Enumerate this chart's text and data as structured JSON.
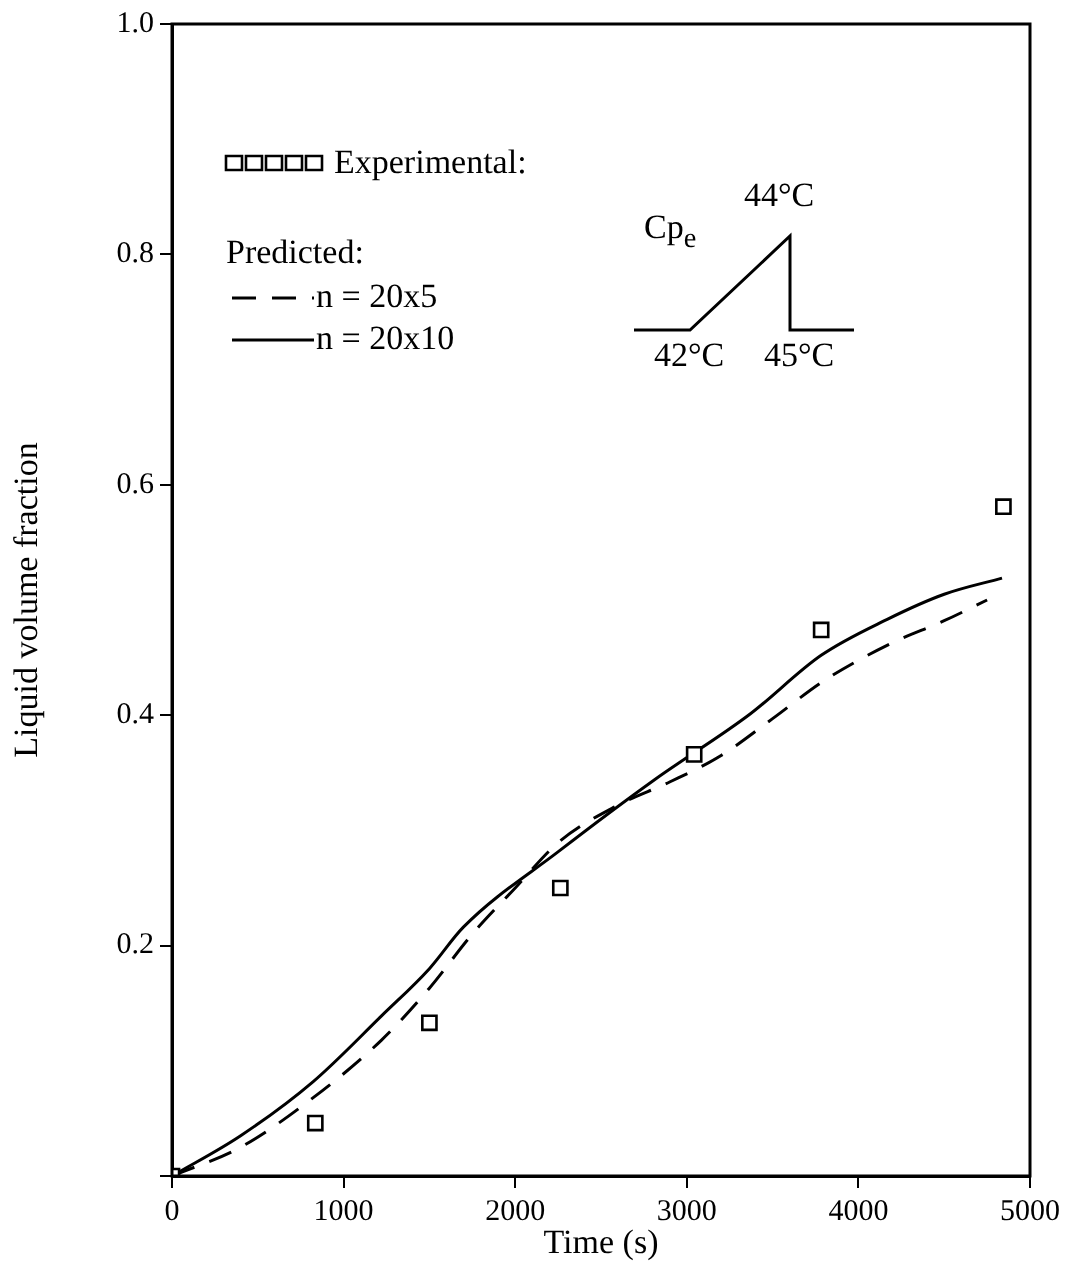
{
  "chart_data": {
    "type": "line",
    "xlabel": "Time (s)",
    "ylabel": "Liquid volume fraction",
    "legend_title": "Predicted:",
    "legend": "top left",
    "grid": false,
    "xlim": [
      0,
      5000
    ],
    "xticks": [
      0,
      1000,
      2000,
      3000,
      4000,
      5000
    ],
    "ylim": [
      0,
      1.0
    ],
    "yticks": [
      {
        "value": 0,
        "label": null
      },
      0.2,
      0.4,
      0.6,
      0.8,
      {
        "value": 1.0,
        "label": "1.0"
      }
    ],
    "annotations": [
      "Cp$_{e}$",
      "44°C",
      "42°C",
      "45°C"
    ],
    "series": [
      {
        "name": "Experimental:",
        "type": "scatter",
        "marker": "square",
        "color": "#000000",
        "x": [
          0,
          835,
          1500,
          2263,
          3043,
          3783,
          4845
        ],
        "values": [
          0,
          0.046,
          0.133,
          0.25,
          0.366,
          0.474,
          0.581
        ]
      },
      {
        "name": "n = 20x5",
        "type": "line",
        "line_style": "dashed",
        "marker": "none",
        "color": "#000000",
        "x": [
          0,
          400,
          823,
          1221,
          1500,
          1750,
          2000,
          2255,
          2600,
          2900,
          3200,
          3500,
          3800,
          4200,
          4500,
          4750
        ],
        "values": [
          0,
          0.025,
          0.068,
          0.118,
          0.163,
          0.21,
          0.25,
          0.29,
          0.322,
          0.342,
          0.365,
          0.397,
          0.43,
          0.463,
          0.482,
          0.5
        ]
      },
      {
        "name": "n = 20x10",
        "type": "line",
        "line_style": "solid",
        "marker": "none",
        "color": "#000000",
        "x": [
          0,
          400,
          823,
          1221,
          1500,
          1698,
          2255,
          2812,
          3369,
          3783,
          4165,
          4500,
          4837
        ],
        "values": [
          0,
          0.035,
          0.082,
          0.139,
          0.18,
          0.216,
          0.282,
          0.344,
          0.401,
          0.452,
          0.483,
          0.505,
          0.519
        ]
      }
    ]
  }
}
